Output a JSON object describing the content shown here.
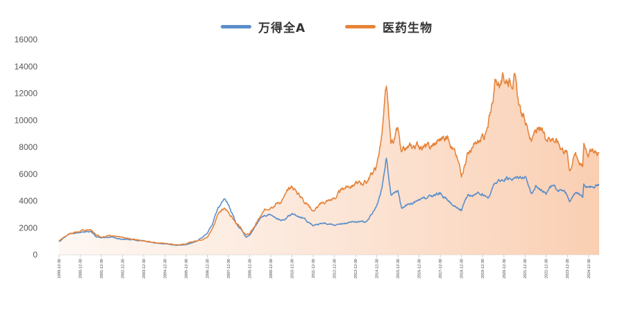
{
  "chart_data": {
    "type": "area",
    "title": "",
    "xlabel": "",
    "ylabel": "",
    "ylim": [
      0,
      16000
    ],
    "y_ticks": [
      "16000",
      "14000",
      "12000",
      "10000",
      "8000",
      "6000",
      "4000",
      "2000",
      "0"
    ],
    "x_tick_labels": [
      "1999-12-30",
      "2000-12-30",
      "2001-12-30",
      "2002-12-30",
      "2003-12-30",
      "2004-12-30",
      "2005-12-30",
      "2006-12-30",
      "2007-12-30",
      "2008-12-30",
      "2009-12-30",
      "2010-12-30",
      "2011-12-30",
      "2012-12-30",
      "2013-12-30",
      "2014-12-30",
      "2015-12-30",
      "2016-12-30",
      "2017-12-30",
      "2018-12-30",
      "2019-12-30",
      "2020-12-30",
      "2021-12-30",
      "2022-12-30",
      "2023-12-30",
      "2024-12-30"
    ],
    "x_range": [
      "1999-12-30",
      "2025-06-30"
    ],
    "grid": false,
    "legend": "top-center",
    "series": [
      {
        "name": "万得全A",
        "color": "#5b8ec9",
        "points": [
          [
            "1999-12-30",
            1000
          ],
          [
            "2000-03-30",
            1300
          ],
          [
            "2000-06-30",
            1550
          ],
          [
            "2000-12-30",
            1650
          ],
          [
            "2001-03-30",
            1700
          ],
          [
            "2001-06-30",
            1750
          ],
          [
            "2001-09-30",
            1350
          ],
          [
            "2001-12-30",
            1250
          ],
          [
            "2002-06-30",
            1300
          ],
          [
            "2002-12-30",
            1150
          ],
          [
            "2003-06-30",
            1100
          ],
          [
            "2003-12-30",
            1050
          ],
          [
            "2004-06-30",
            900
          ],
          [
            "2004-12-30",
            800
          ],
          [
            "2005-06-30",
            700
          ],
          [
            "2005-12-30",
            750
          ],
          [
            "2006-06-30",
            1000
          ],
          [
            "2006-12-30",
            1550
          ],
          [
            "2007-03-30",
            2300
          ],
          [
            "2007-06-30",
            3400
          ],
          [
            "2007-10-15",
            4200
          ],
          [
            "2007-12-30",
            3700
          ],
          [
            "2008-04-30",
            2400
          ],
          [
            "2008-11-01",
            1300
          ],
          [
            "2008-12-30",
            1450
          ],
          [
            "2009-07-30",
            2900
          ],
          [
            "2009-12-30",
            3000
          ],
          [
            "2010-06-30",
            2500
          ],
          [
            "2010-12-30",
            3000
          ],
          [
            "2011-06-30",
            2700
          ],
          [
            "2011-12-30",
            2200
          ],
          [
            "2012-06-30",
            2400
          ],
          [
            "2012-12-30",
            2250
          ],
          [
            "2013-06-30",
            2300
          ],
          [
            "2013-12-30",
            2450
          ],
          [
            "2014-06-30",
            2450
          ],
          [
            "2014-12-30",
            3600
          ],
          [
            "2015-03-30",
            4800
          ],
          [
            "2015-06-12",
            7200
          ],
          [
            "2015-08-30",
            4400
          ],
          [
            "2015-12-30",
            4800
          ],
          [
            "2016-02-28",
            3500
          ],
          [
            "2016-06-30",
            3700
          ],
          [
            "2016-12-30",
            4000
          ],
          [
            "2017-06-30",
            4300
          ],
          [
            "2017-12-30",
            4600
          ],
          [
            "2018-06-30",
            3800
          ],
          [
            "2018-12-30",
            3300
          ],
          [
            "2019-04-15",
            4400
          ],
          [
            "2019-12-30",
            4500
          ],
          [
            "2020-03-30",
            4200
          ],
          [
            "2020-07-30",
            5300
          ],
          [
            "2020-12-30",
            5600
          ],
          [
            "2021-06-30",
            5700
          ],
          [
            "2021-09-30",
            5900
          ],
          [
            "2021-12-30",
            5800
          ],
          [
            "2022-04-30",
            4500
          ],
          [
            "2022-06-30",
            5100
          ],
          [
            "2022-12-30",
            4700
          ],
          [
            "2023-03-30",
            5100
          ],
          [
            "2023-12-30",
            4500
          ],
          [
            "2024-02-05",
            3900
          ],
          [
            "2024-05-20",
            4600
          ],
          [
            "2024-09-20",
            4200
          ],
          [
            "2024-10-08",
            5300
          ],
          [
            "2024-12-30",
            5100
          ],
          [
            "2025-06-30",
            5200
          ]
        ]
      },
      {
        "name": "医药生物",
        "color": "#e6843a",
        "points": [
          [
            "1999-12-30",
            1000
          ],
          [
            "2000-03-30",
            1350
          ],
          [
            "2000-06-30",
            1600
          ],
          [
            "2000-12-30",
            1750
          ],
          [
            "2001-03-30",
            1800
          ],
          [
            "2001-06-30",
            1850
          ],
          [
            "2001-09-30",
            1450
          ],
          [
            "2001-12-30",
            1350
          ],
          [
            "2002-06-30",
            1450
          ],
          [
            "2002-12-30",
            1250
          ],
          [
            "2003-06-30",
            1150
          ],
          [
            "2003-12-30",
            1050
          ],
          [
            "2004-06-30",
            900
          ],
          [
            "2004-12-30",
            850
          ],
          [
            "2005-06-30",
            750
          ],
          [
            "2005-12-30",
            800
          ],
          [
            "2006-06-30",
            1050
          ],
          [
            "2006-12-30",
            1300
          ],
          [
            "2007-03-30",
            2000
          ],
          [
            "2007-06-30",
            3000
          ],
          [
            "2007-10-15",
            3400
          ],
          [
            "2007-12-30",
            3200
          ],
          [
            "2008-04-30",
            2400
          ],
          [
            "2008-11-01",
            1450
          ],
          [
            "2008-12-30",
            1550
          ],
          [
            "2009-07-30",
            3000
          ],
          [
            "2009-12-30",
            3700
          ],
          [
            "2010-06-30",
            4000
          ],
          [
            "2010-12-30",
            5100
          ],
          [
            "2011-06-30",
            4200
          ],
          [
            "2011-12-30",
            3300
          ],
          [
            "2012-06-30",
            3900
          ],
          [
            "2012-12-30",
            4200
          ],
          [
            "2013-06-30",
            5000
          ],
          [
            "2013-12-30",
            5300
          ],
          [
            "2014-06-30",
            5400
          ],
          [
            "2014-12-30",
            6600
          ],
          [
            "2015-03-30",
            9000
          ],
          [
            "2015-06-12",
            12300
          ],
          [
            "2015-08-30",
            8200
          ],
          [
            "2015-12-30",
            9200
          ],
          [
            "2016-02-28",
            7400
          ],
          [
            "2016-06-30",
            7900
          ],
          [
            "2016-12-30",
            8200
          ],
          [
            "2017-06-30",
            7900
          ],
          [
            "2017-12-30",
            8600
          ],
          [
            "2018-05-30",
            8900
          ],
          [
            "2018-12-30",
            6100
          ],
          [
            "2019-04-15",
            7500
          ],
          [
            "2019-12-30",
            8600
          ],
          [
            "2020-03-30",
            9300
          ],
          [
            "2020-07-30",
            12800
          ],
          [
            "2020-12-30",
            13000
          ],
          [
            "2021-06-30",
            13300
          ],
          [
            "2021-09-30",
            10700
          ],
          [
            "2021-12-30",
            10000
          ],
          [
            "2022-04-30",
            8500
          ],
          [
            "2022-06-30",
            9300
          ],
          [
            "2022-12-30",
            8800
          ],
          [
            "2023-03-30",
            8900
          ],
          [
            "2023-12-30",
            7600
          ],
          [
            "2024-02-05",
            6400
          ],
          [
            "2024-05-20",
            7600
          ],
          [
            "2024-09-20",
            6500
          ],
          [
            "2024-10-08",
            8300
          ],
          [
            "2024-12-30",
            7700
          ],
          [
            "2025-06-30",
            7600
          ]
        ]
      }
    ]
  }
}
